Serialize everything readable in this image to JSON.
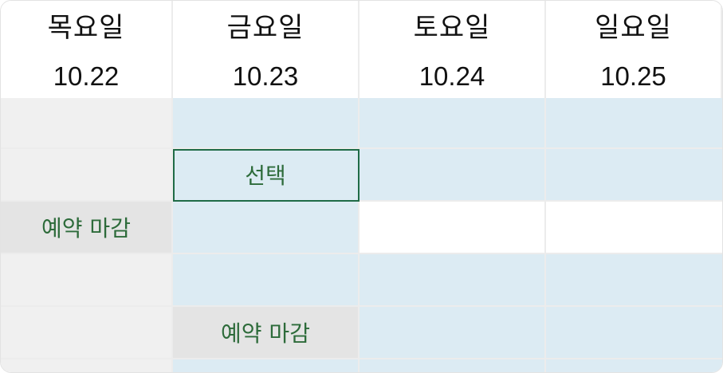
{
  "days": [
    {
      "day": "목요일",
      "date": "10.22"
    },
    {
      "day": "금요일",
      "date": "10.23"
    },
    {
      "day": "토요일",
      "date": "10.24"
    },
    {
      "day": "일요일",
      "date": "10.25"
    }
  ],
  "slots": {
    "r1": {
      "c0": "",
      "c1": "",
      "c2": "",
      "c3": ""
    },
    "r2": {
      "c0": "",
      "c1": "선택",
      "c2": "",
      "c3": ""
    },
    "r3": {
      "c0": "예약 마감",
      "c1": "",
      "c2": "",
      "c3": ""
    },
    "r4": {
      "c0": "",
      "c1": "",
      "c2": "",
      "c3": ""
    },
    "r5": {
      "c0": "",
      "c1": "예약 마감",
      "c2": "",
      "c3": ""
    },
    "r6": {
      "c0": "",
      "c1": "",
      "c2": "",
      "c3": ""
    }
  },
  "colors": {
    "available": "#dcebf3",
    "past": "#f0f0f0",
    "closed": "#e4e4e4",
    "empty": "#ffffff",
    "selected_border": "#1f6b46",
    "status_text": "#2d6b3a"
  }
}
